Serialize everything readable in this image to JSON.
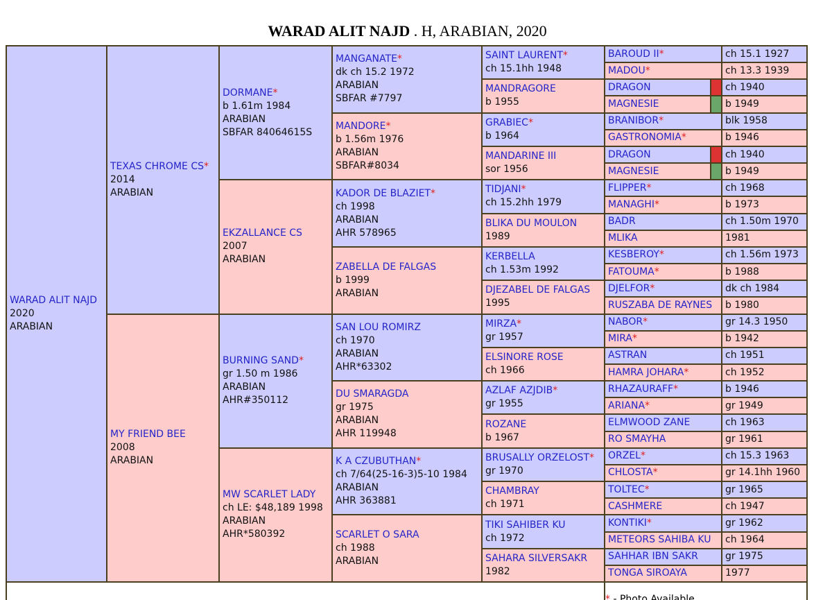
{
  "title": {
    "name": "WARAD ALIT NAJD",
    "rest": ". H, ARABIAN, 2020"
  },
  "generations": [
    [
      {
        "name": "WARAD ALIT NAJD",
        "photo": false,
        "details": [
          "2020",
          "ARABIAN"
        ]
      }
    ],
    [
      {
        "name": "TEXAS CHROME CS",
        "photo": true,
        "details": [
          "2014",
          "ARABIAN"
        ]
      },
      {
        "name": "MY FRIEND BEE",
        "photo": false,
        "details": [
          "2008",
          "ARABIAN"
        ]
      }
    ],
    [
      {
        "name": "DORMANE",
        "photo": true,
        "details": [
          "b 1.61m 1984",
          "ARABIAN",
          "SBFAR 84064615S"
        ]
      },
      {
        "name": "EKZALLANCE CS",
        "photo": false,
        "details": [
          "2007",
          "ARABIAN"
        ]
      },
      {
        "name": "BURNING SAND",
        "photo": true,
        "details": [
          "gr 1.50 m 1986",
          "ARABIAN",
          "AHR#350112"
        ]
      },
      {
        "name": "MW SCARLET LADY",
        "photo": false,
        "details": [
          "ch LE: $48,189 1998",
          "ARABIAN",
          "AHR*580392"
        ]
      }
    ],
    [
      {
        "name": "MANGANATE",
        "photo": true,
        "details": [
          "dk ch 15.2 1972",
          "ARABIAN",
          "SBFAR #7797"
        ]
      },
      {
        "name": "MANDORE",
        "photo": true,
        "details": [
          "b 1.56m 1976",
          "ARABIAN",
          "SBFAR#8034"
        ]
      },
      {
        "name": "KADOR DE BLAZIET",
        "photo": true,
        "details": [
          "ch 1998",
          "ARABIAN",
          "AHR 578965"
        ]
      },
      {
        "name": "ZABELLA DE FALGAS",
        "photo": false,
        "details": [
          "b 1999",
          "ARABIAN"
        ]
      },
      {
        "name": "SAN LOU ROMIRZ",
        "photo": false,
        "details": [
          "ch 1970",
          "ARABIAN",
          "AHR*63302"
        ]
      },
      {
        "name": "DU SMARAGDA",
        "photo": false,
        "details": [
          "gr 1975",
          "ARABIAN",
          "AHR 119948"
        ]
      },
      {
        "name": "K A CZUBUTHAN",
        "photo": true,
        "details": [
          "ch 7/64(25-16-3)5-10 1984",
          "ARABIAN",
          "AHR 363881"
        ]
      },
      {
        "name": "SCARLET O SARA",
        "photo": false,
        "details": [
          "ch 1988",
          "ARABIAN"
        ]
      }
    ],
    [
      {
        "name": "SAINT LAURENT",
        "photo": true,
        "details": [
          "ch 15.1hh 1948"
        ]
      },
      {
        "name": "MANDRAGORE",
        "photo": false,
        "details": [
          "b 1955"
        ]
      },
      {
        "name": "GRABIEC",
        "photo": true,
        "details": [
          "b 1964"
        ]
      },
      {
        "name": "MANDARINE III",
        "photo": false,
        "details": [
          "sor 1956"
        ]
      },
      {
        "name": "TIDJANI",
        "photo": true,
        "details": [
          "ch 15.2hh 1979"
        ]
      },
      {
        "name": "BLIKA DU MOULON",
        "photo": false,
        "details": [
          "1989"
        ]
      },
      {
        "name": "KERBELLA",
        "photo": false,
        "details": [
          "ch 1.53m 1992"
        ]
      },
      {
        "name": "DJEZABEL DE FALGAS",
        "photo": false,
        "details": [
          "1995"
        ]
      },
      {
        "name": "MIRZA",
        "photo": true,
        "details": [
          "gr 1957"
        ]
      },
      {
        "name": "ELSINORE ROSE",
        "photo": false,
        "details": [
          "ch 1966"
        ]
      },
      {
        "name": "AZLAF AZJDIB",
        "photo": true,
        "details": [
          "gr 1955"
        ]
      },
      {
        "name": "ROZANE",
        "photo": false,
        "details": [
          "b 1967"
        ]
      },
      {
        "name": "BRUSALLY ORZELOST",
        "photo": true,
        "details": [
          "gr 1970"
        ]
      },
      {
        "name": "CHAMBRAY",
        "photo": false,
        "details": [
          "ch 1971"
        ]
      },
      {
        "name": "TIKI SAHIBER KU",
        "photo": false,
        "details": [
          "ch 1972"
        ]
      },
      {
        "name": "SAHARA SILVERSAKR",
        "photo": false,
        "details": [
          "1982"
        ]
      }
    ],
    [
      {
        "name": "BAROUD II",
        "photo": true,
        "details": [
          "ch 15.1 1927"
        ]
      },
      {
        "name": "MADOU",
        "photo": true,
        "details": [
          "ch 13.3 1939"
        ]
      },
      {
        "name": "DRAGON",
        "photo": false,
        "details": [
          "ch 1940"
        ],
        "marker": "#dd3333"
      },
      {
        "name": "MAGNESIE",
        "photo": false,
        "details": [
          "b 1949"
        ],
        "marker": "#6aa56a"
      },
      {
        "name": "BRANIBOR",
        "photo": true,
        "details": [
          "blk 1958"
        ]
      },
      {
        "name": "GASTRONOMIA",
        "photo": true,
        "details": [
          "b 1946"
        ]
      },
      {
        "name": "DRAGON",
        "photo": false,
        "details": [
          "ch 1940"
        ],
        "marker": "#dd3333"
      },
      {
        "name": "MAGNESIE",
        "photo": false,
        "details": [
          "b 1949"
        ],
        "marker": "#6aa56a"
      },
      {
        "name": "FLIPPER",
        "photo": true,
        "details": [
          "ch 1968"
        ]
      },
      {
        "name": "MANAGHI",
        "photo": true,
        "details": [
          "b 1973"
        ]
      },
      {
        "name": "BADR",
        "photo": false,
        "details": [
          "ch 1.50m 1970"
        ]
      },
      {
        "name": "MLIKA",
        "photo": false,
        "details": [
          "1981"
        ]
      },
      {
        "name": "KESBEROY",
        "photo": true,
        "details": [
          "ch 1.56m 1973"
        ]
      },
      {
        "name": "FATOUMA",
        "photo": true,
        "details": [
          "b 1988"
        ]
      },
      {
        "name": "DJELFOR",
        "photo": true,
        "details": [
          "dk ch 1984"
        ]
      },
      {
        "name": "RUSZABA DE RAYNES",
        "photo": false,
        "details": [
          "b 1980"
        ]
      },
      {
        "name": "NABOR",
        "photo": true,
        "details": [
          "gr 14.3 1950"
        ]
      },
      {
        "name": "MIRA",
        "photo": true,
        "details": [
          "b 1942"
        ]
      },
      {
        "name": "ASTRAN",
        "photo": false,
        "details": [
          "ch 1951"
        ]
      },
      {
        "name": "HAMRA JOHARA",
        "photo": true,
        "details": [
          "ch 1952"
        ]
      },
      {
        "name": "RHAZAURAFF",
        "photo": true,
        "details": [
          "b 1946"
        ]
      },
      {
        "name": "ARIANA",
        "photo": true,
        "details": [
          "gr 1949"
        ]
      },
      {
        "name": "ELMWOOD ZANE",
        "photo": false,
        "details": [
          "ch 1963"
        ]
      },
      {
        "name": "RO SMAYHA",
        "photo": false,
        "details": [
          "gr 1961"
        ]
      },
      {
        "name": "ORZEL",
        "photo": true,
        "details": [
          "ch 15.3 1963"
        ]
      },
      {
        "name": "CHLOSTA",
        "photo": true,
        "details": [
          "gr 14.1hh 1960"
        ]
      },
      {
        "name": "TOLTEC",
        "photo": true,
        "details": [
          "gr 1965"
        ]
      },
      {
        "name": "CASHMERE",
        "photo": false,
        "details": [
          "ch 1947"
        ]
      },
      {
        "name": "KONTIKI",
        "photo": true,
        "details": [
          "gr 1962"
        ]
      },
      {
        "name": "METEORS SAHIBA KU",
        "photo": false,
        "details": [
          "ch 1964"
        ]
      },
      {
        "name": "SAHHAR IBN SAKR",
        "photo": false,
        "details": [
          "gr 1975"
        ]
      },
      {
        "name": "TONGA SIROAYA",
        "photo": false,
        "details": [
          "1977"
        ]
      }
    ]
  ],
  "legend": {
    "marker": "*",
    "text": "- Photo Available"
  }
}
